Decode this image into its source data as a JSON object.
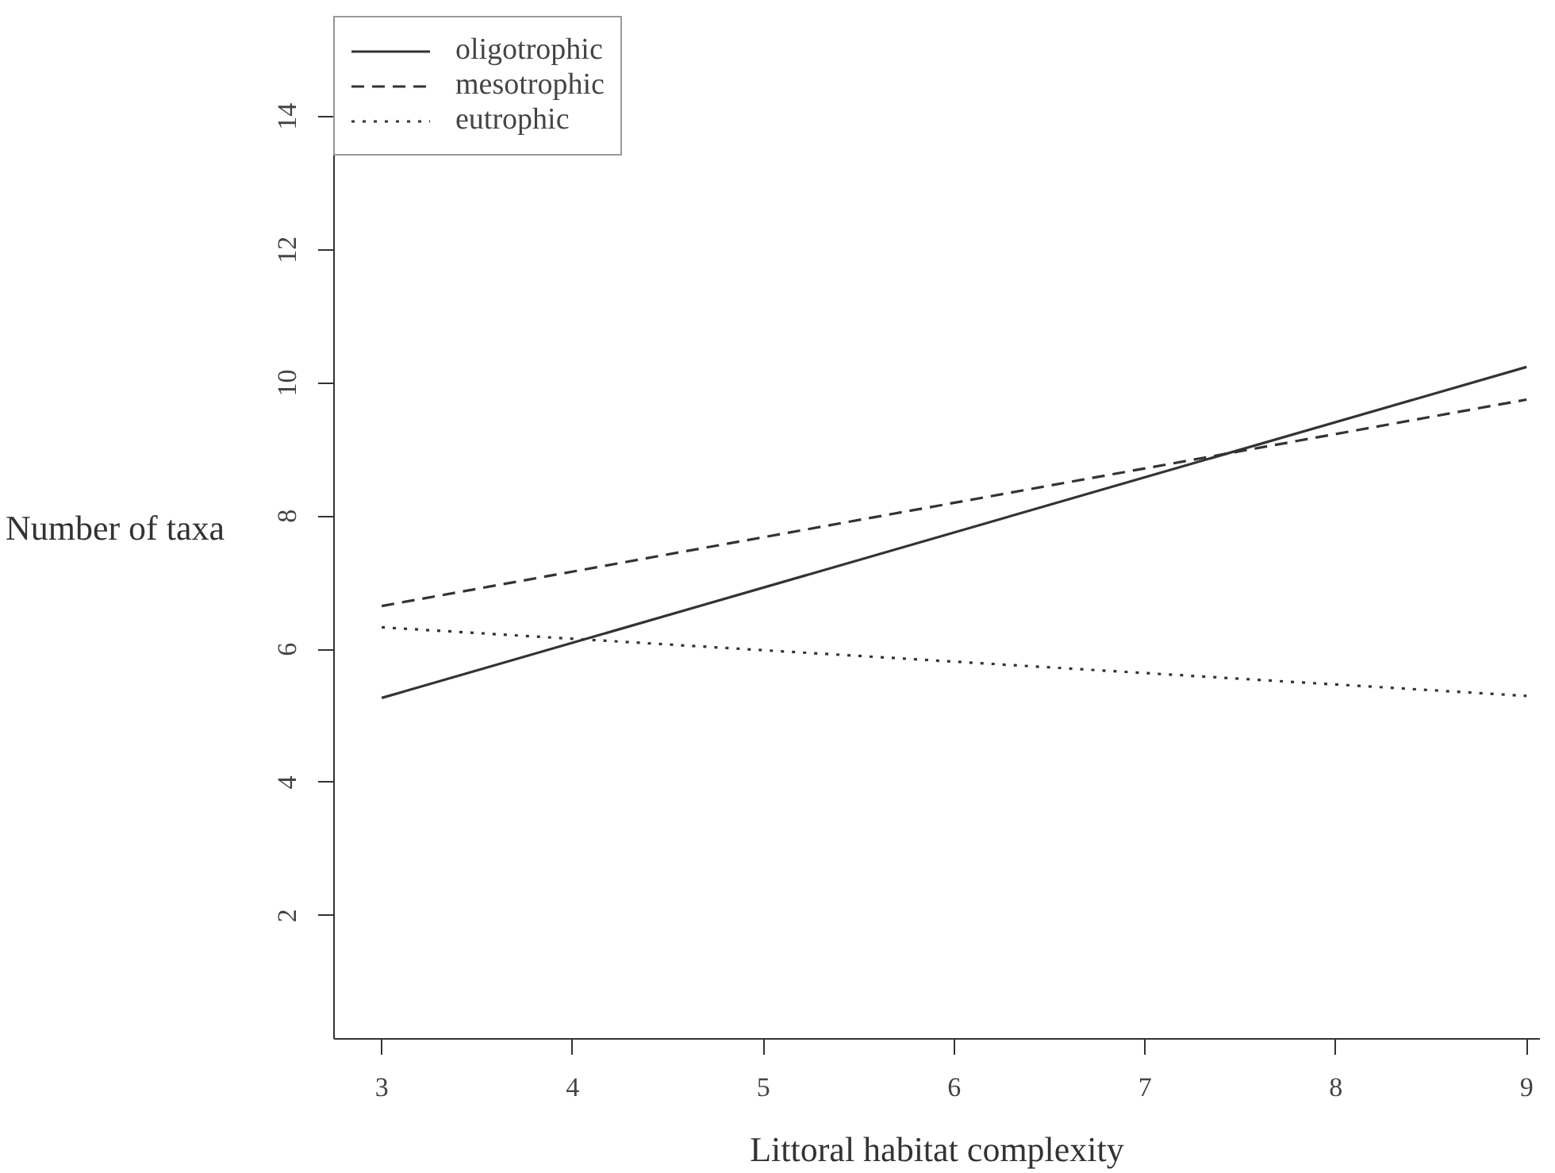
{
  "chart_data": {
    "type": "line",
    "xlabel": "Littoral habitat complexity",
    "ylabel": "Number of taxa",
    "x": [
      3,
      9
    ],
    "series": [
      {
        "name": "oligotrophic",
        "color": "#333333",
        "values": [
          5.27,
          10.24
        ],
        "line_style": "solid"
      },
      {
        "name": "mesotrophic",
        "color": "#333333",
        "values": [
          6.65,
          9.75
        ],
        "line_style": "dashed"
      },
      {
        "name": "eutrophic",
        "color": "#333333",
        "values": [
          6.33,
          5.3
        ],
        "line_style": "dotted"
      }
    ],
    "xlim": [
      2.75,
      9.07
    ],
    "ylim": [
      0.15,
      15.5
    ],
    "xticks": [
      3,
      4,
      5,
      6,
      7,
      8,
      9
    ],
    "yticks": [
      2,
      4,
      6,
      8,
      10,
      12,
      14
    ],
    "grid": false,
    "legend": "top left",
    "marker": "none"
  }
}
